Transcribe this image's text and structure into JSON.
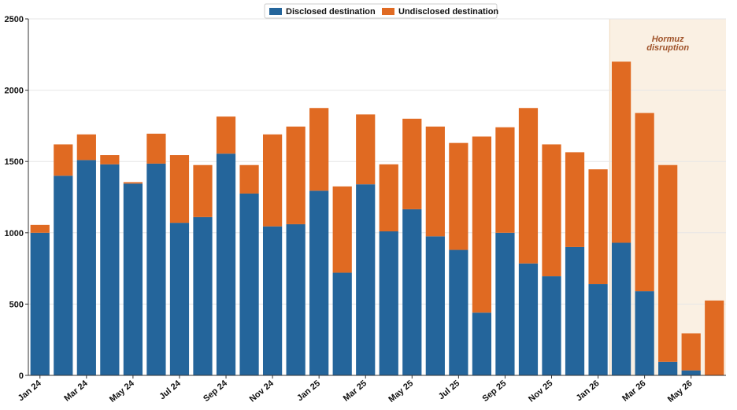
{
  "chart_data": {
    "type": "bar",
    "stacked": true,
    "title": "",
    "xlabel": "",
    "ylabel": "",
    "ylim": [
      0,
      2500
    ],
    "yticks": [
      0,
      500,
      1000,
      1500,
      2000,
      2500
    ],
    "grid": "horizontal",
    "legend_position": "top-center",
    "categories": [
      "Jan 24",
      "Feb 24",
      "Mar 24",
      "Apr 24",
      "May 24",
      "Jun 24",
      "Jul 24",
      "Aug 24",
      "Sep 24",
      "Oct 24",
      "Nov 24",
      "Dec 24",
      "Jan 25",
      "Feb 25",
      "Mar 25",
      "Apr 25",
      "May 25",
      "Jun 25",
      "Jul 25",
      "Aug 25",
      "Sep 25",
      "Oct 25",
      "Nov 25",
      "Dec 25",
      "Jan 26",
      "Feb 26",
      "Mar 26",
      "Apr 26",
      "May 26",
      "Jun 26"
    ],
    "tick_labels": [
      "Jan 24",
      "Mar 24",
      "May 24",
      "Jul 24",
      "Sep 24",
      "Nov 24",
      "Jan 25",
      "Mar 25",
      "May 25",
      "Jul 25",
      "Sep 25",
      "Nov 25",
      "Jan 26",
      "Mar 26",
      "May 26"
    ],
    "series": [
      {
        "name": "Disclosed destination",
        "color": "#24659b",
        "values": [
          1000,
          1400,
          1510,
          1480,
          1345,
          1485,
          1070,
          1110,
          1555,
          1275,
          1045,
          1060,
          1295,
          720,
          1340,
          1010,
          1165,
          975,
          880,
          440,
          1000,
          785,
          695,
          900,
          640,
          930,
          590,
          95,
          35,
          0
        ]
      },
      {
        "name": "Undisclosed destination",
        "color": "#e06a22",
        "values": [
          55,
          220,
          180,
          65,
          10,
          210,
          475,
          365,
          260,
          200,
          645,
          685,
          580,
          605,
          490,
          470,
          635,
          770,
          750,
          1235,
          740,
          1090,
          925,
          665,
          805,
          1270,
          1250,
          1380,
          260,
          525
        ]
      }
    ],
    "annotation": {
      "text_line1": "Hormuz",
      "text_line2": "disruption",
      "start_category": "Feb 26",
      "end_category": "Jun 26",
      "fill_color": "#faf0e3",
      "text_color": "#a0532a"
    }
  }
}
